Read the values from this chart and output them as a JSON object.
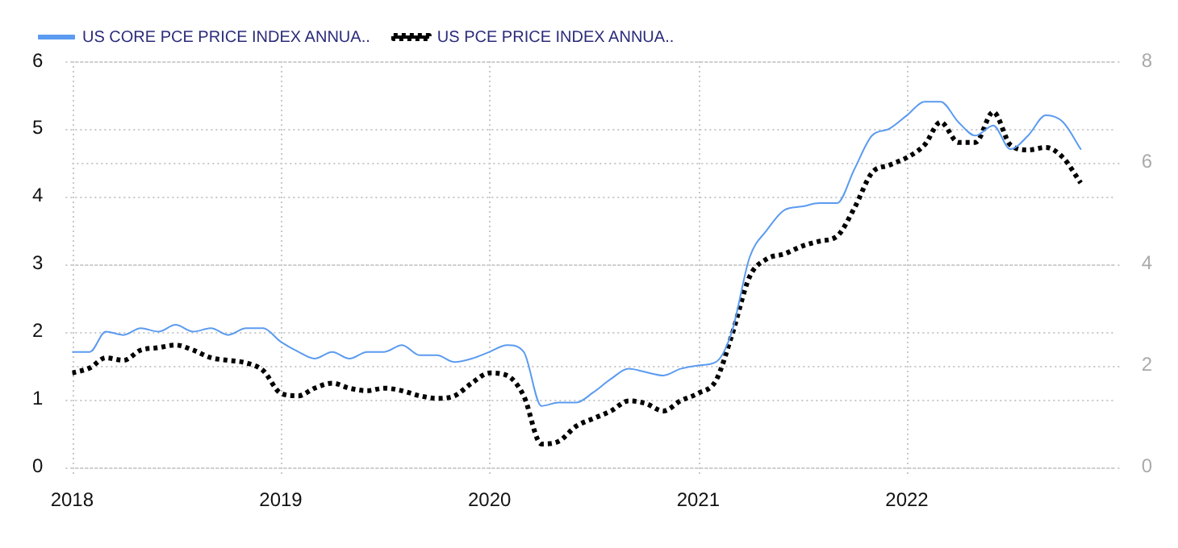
{
  "chart_data": {
    "type": "line",
    "legend": "top left",
    "grid": true,
    "marker": "none",
    "x": [
      "2018-01",
      "2018-02",
      "2018-03",
      "2018-04",
      "2018-05",
      "2018-06",
      "2018-07",
      "2018-08",
      "2018-09",
      "2018-10",
      "2018-11",
      "2018-12",
      "2019-01",
      "2019-02",
      "2019-03",
      "2019-04",
      "2019-05",
      "2019-06",
      "2019-07",
      "2019-08",
      "2019-09",
      "2019-10",
      "2019-11",
      "2019-12",
      "2020-01",
      "2020-02",
      "2020-03",
      "2020-04",
      "2020-05",
      "2020-06",
      "2020-07",
      "2020-08",
      "2020-09",
      "2020-10",
      "2020-11",
      "2020-12",
      "2021-01",
      "2021-02",
      "2021-03",
      "2021-04",
      "2021-05",
      "2021-06",
      "2021-07",
      "2021-08",
      "2021-09",
      "2021-10",
      "2021-11",
      "2021-12",
      "2022-01",
      "2022-02",
      "2022-03",
      "2022-04",
      "2022-05",
      "2022-06",
      "2022-07",
      "2022-08",
      "2022-09",
      "2022-10",
      "2022-11"
    ],
    "xlim": [
      "2018-01",
      "2023-01"
    ],
    "xticks": [
      "2018",
      "2019",
      "2020",
      "2021",
      "2022"
    ],
    "ylim": [
      0,
      6
    ],
    "yticks": [
      0,
      1,
      2,
      3,
      4,
      5,
      6
    ],
    "y2lim": [
      0,
      8
    ],
    "y2ticks": [
      0,
      2,
      4,
      6,
      8
    ],
    "series": [
      {
        "name": "US CORE PCE PRICE INDEX ANNUA..",
        "color": "#5b9bf0",
        "line_style": "solid",
        "values": [
          1.7,
          1.7,
          2.0,
          1.95,
          2.05,
          2.0,
          2.1,
          2.0,
          2.05,
          1.95,
          2.05,
          2.05,
          1.85,
          1.7,
          1.6,
          1.7,
          1.6,
          1.7,
          1.7,
          1.8,
          1.65,
          1.65,
          1.55,
          1.6,
          1.7,
          1.8,
          1.7,
          0.9,
          0.95,
          0.95,
          1.1,
          1.3,
          1.45,
          1.4,
          1.35,
          1.45,
          1.5,
          1.55,
          2.0,
          3.1,
          3.5,
          3.8,
          3.85,
          3.9,
          3.9,
          4.4,
          4.9,
          5.0,
          5.2,
          5.4,
          5.4,
          5.1,
          4.9,
          5.05,
          4.7,
          4.9,
          5.2,
          5.1,
          4.7
        ]
      },
      {
        "name": "US PCE PRICE INDEX ANNUA..",
        "color": "#000000",
        "line_style": "dotted",
        "axis": "y2",
        "values": [
          1.85,
          1.95,
          2.15,
          2.1,
          2.3,
          2.35,
          2.4,
          2.3,
          2.15,
          2.1,
          2.05,
          1.9,
          1.45,
          1.4,
          1.55,
          1.65,
          1.55,
          1.5,
          1.55,
          1.5,
          1.4,
          1.35,
          1.4,
          1.65,
          1.85,
          1.8,
          1.4,
          0.45,
          0.5,
          0.8,
          0.95,
          1.1,
          1.3,
          1.25,
          1.1,
          1.3,
          1.45,
          1.7,
          2.6,
          3.75,
          4.1,
          4.2,
          4.35,
          4.45,
          4.55,
          5.1,
          5.8,
          5.95,
          6.1,
          6.35,
          6.8,
          6.4,
          6.4,
          7.0,
          6.35,
          6.25,
          6.3,
          6.1,
          5.6
        ]
      }
    ]
  }
}
